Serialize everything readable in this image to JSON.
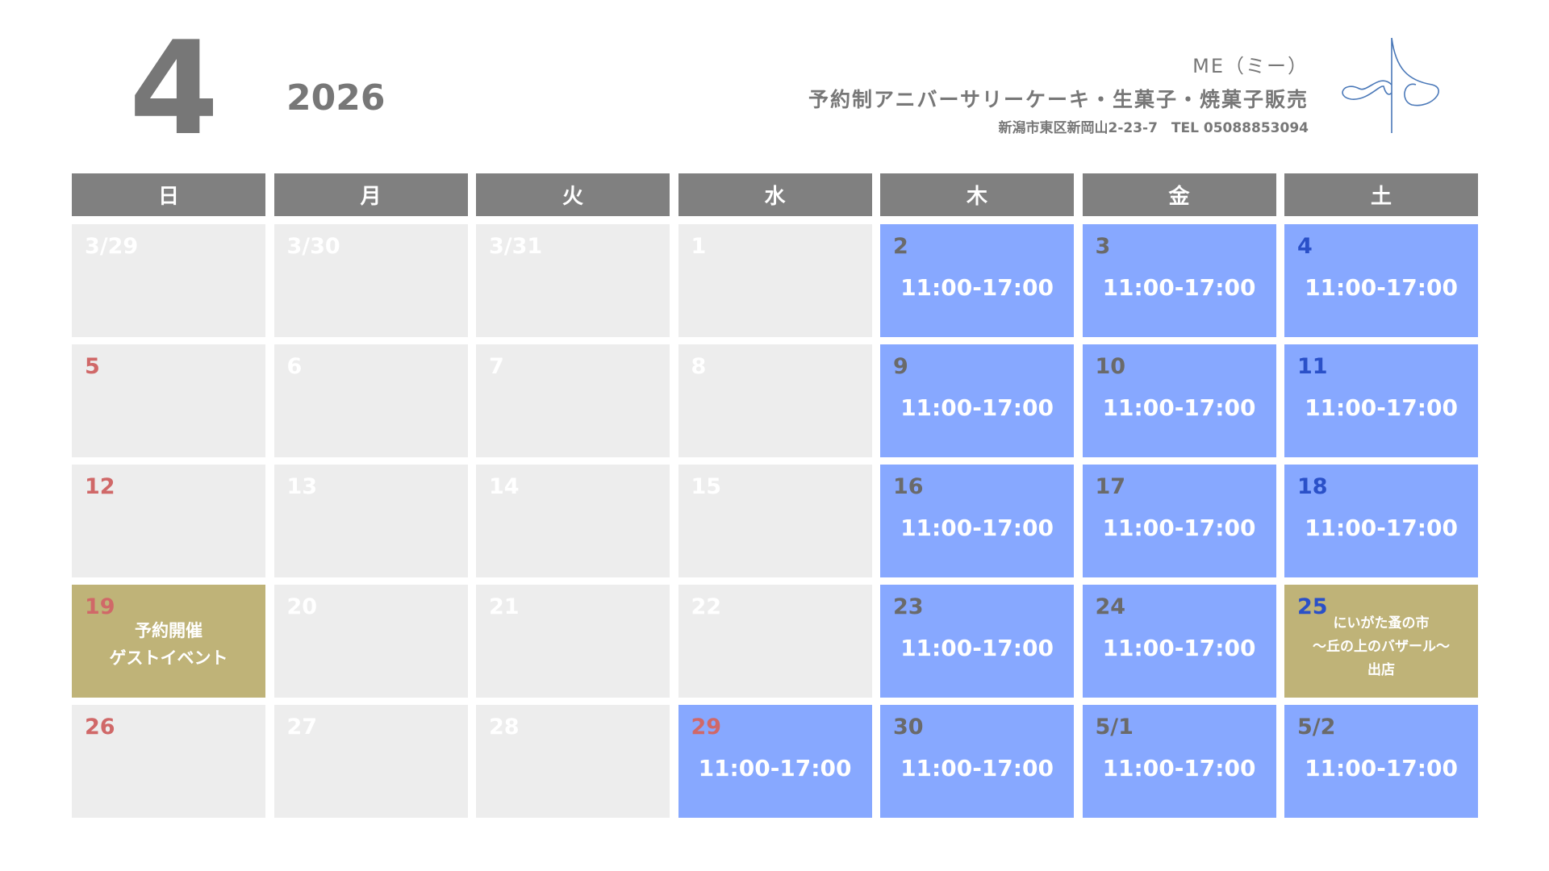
{
  "header": {
    "month": "4",
    "year": "2026",
    "shop_name": "ME（ミー）",
    "tagline": "予約制アニバーサリーケーキ・生菓子・焼菓子販売",
    "address": "新潟市東区新岡山2-23-7　TEL 05088853094"
  },
  "colors": {
    "header": "#808080",
    "closed": "#ededed",
    "open": "#87a8ff",
    "event": "#bfb378",
    "sunday": "#d06868",
    "saturday": "#2a50c8"
  },
  "weekdays": [
    "日",
    "月",
    "火",
    "水",
    "木",
    "金",
    "土"
  ],
  "days": [
    {
      "d": "3/29",
      "s": "closed"
    },
    {
      "d": "3/30",
      "s": "closed"
    },
    {
      "d": "3/31",
      "s": "closed"
    },
    {
      "d": "1",
      "s": "closed"
    },
    {
      "d": "2",
      "s": "open",
      "t": "11:00-17:00"
    },
    {
      "d": "3",
      "s": "open",
      "t": "11:00-17:00"
    },
    {
      "d": "4",
      "s": "open",
      "t": "11:00-17:00"
    },
    {
      "d": "5",
      "s": "closed"
    },
    {
      "d": "6",
      "s": "closed"
    },
    {
      "d": "7",
      "s": "closed"
    },
    {
      "d": "8",
      "s": "closed"
    },
    {
      "d": "9",
      "s": "open",
      "t": "11:00-17:00"
    },
    {
      "d": "10",
      "s": "open",
      "t": "11:00-17:00"
    },
    {
      "d": "11",
      "s": "open",
      "t": "11:00-17:00"
    },
    {
      "d": "12",
      "s": "closed"
    },
    {
      "d": "13",
      "s": "closed"
    },
    {
      "d": "14",
      "s": "closed"
    },
    {
      "d": "15",
      "s": "closed"
    },
    {
      "d": "16",
      "s": "open",
      "t": "11:00-17:00"
    },
    {
      "d": "17",
      "s": "open",
      "t": "11:00-17:00"
    },
    {
      "d": "18",
      "s": "open",
      "t": "11:00-17:00"
    },
    {
      "d": "19",
      "s": "event",
      "e": "予約開催\nゲストイベント"
    },
    {
      "d": "20",
      "s": "closed"
    },
    {
      "d": "21",
      "s": "closed"
    },
    {
      "d": "22",
      "s": "closed"
    },
    {
      "d": "23",
      "s": "open",
      "t": "11:00-17:00"
    },
    {
      "d": "24",
      "s": "open",
      "t": "11:00-17:00"
    },
    {
      "d": "25",
      "s": "event",
      "e": "にいがた蚤の市\n〜丘の上のバザール〜\n出店"
    },
    {
      "d": "26",
      "s": "closed"
    },
    {
      "d": "27",
      "s": "closed"
    },
    {
      "d": "28",
      "s": "closed"
    },
    {
      "d": "29",
      "s": "open",
      "t": "11:00-17:00",
      "holiday": true
    },
    {
      "d": "30",
      "s": "open",
      "t": "11:00-17:00"
    },
    {
      "d": "5/1",
      "s": "open",
      "t": "11:00-17:00"
    },
    {
      "d": "5/2",
      "s": "open",
      "t": "11:00-17:00"
    }
  ]
}
